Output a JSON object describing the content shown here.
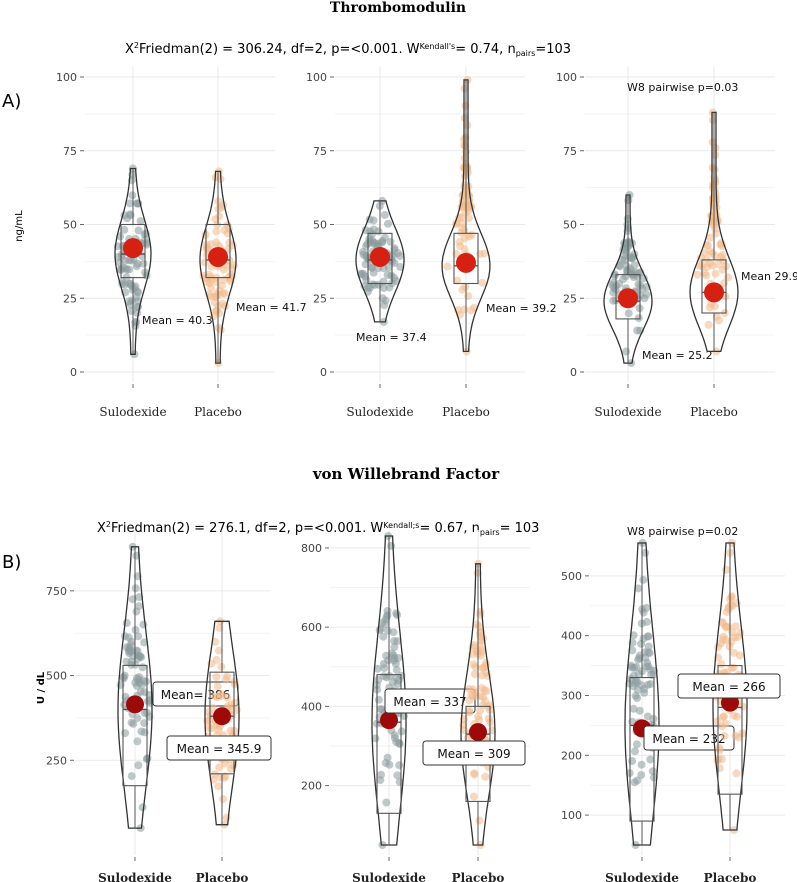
{
  "figure": {
    "panel_a": {
      "title": "Thrombomodulin",
      "letter": "A)",
      "stats_parts": [
        "X",
        "2",
        "Friedman(2) = 306.24, df=2, p=<0.001. W",
        "Kendall's",
        "= 0.74, n",
        "pairs",
        "=103"
      ],
      "y_label": "ng/mL"
    },
    "panel_b": {
      "title": "von Willebrand Factor",
      "letter": "B)",
      "stats_parts": [
        "X",
        "2",
        "Friedman(2) = 276.1, df=2, p=<0.001. W",
        "Kendall;s",
        "= 0.67, n",
        "pairs",
        "= 103"
      ],
      "y_label": "U / dL"
    }
  },
  "chart_data": [
    {
      "type": "violin",
      "panel": "A",
      "categories": [
        "Sulodexide",
        "Placebo"
      ],
      "ylim": [
        0,
        100
      ],
      "yticks": [
        0,
        25,
        50,
        75,
        100
      ],
      "annotation": "",
      "series": [
        {
          "category": "Sulodexide",
          "mean": 40.3,
          "mean_label": "Mean = 40.3",
          "median": 40,
          "q1": 32,
          "q3": 50,
          "min": 6,
          "max": 69,
          "mean_marker": 42
        },
        {
          "category": "Placebo",
          "mean": 41.7,
          "mean_label": "Mean = 41.7",
          "median": 38,
          "q1": 32,
          "q3": 50,
          "min": 3,
          "max": 68,
          "mean_marker": 39
        }
      ]
    },
    {
      "type": "violin",
      "panel": "A",
      "categories": [
        "Sulodexide",
        "Placebo"
      ],
      "ylim": [
        0,
        100
      ],
      "yticks": [
        0,
        25,
        50,
        75,
        100
      ],
      "annotation": "",
      "series": [
        {
          "category": "Sulodexide",
          "mean": 37.4,
          "mean_label": "Mean = 37.4",
          "median": 38,
          "q1": 30,
          "q3": 47,
          "min": 17,
          "max": 58,
          "mean_marker": 39
        },
        {
          "category": "Placebo",
          "mean": 39.2,
          "mean_label": "Mean = 39.2",
          "median": 36,
          "q1": 30,
          "q3": 47,
          "min": 7,
          "max": 99,
          "mean_marker": 37
        }
      ]
    },
    {
      "type": "violin",
      "panel": "A",
      "categories": [
        "Sulodexide",
        "Placebo"
      ],
      "ylim": [
        0,
        100
      ],
      "yticks": [
        0,
        25,
        50,
        75,
        100
      ],
      "annotation": "W8 pairwise p=0.03",
      "series": [
        {
          "category": "Sulodexide",
          "mean": 25.2,
          "mean_label": "Mean = 25.2",
          "median": 24,
          "q1": 18,
          "q3": 33,
          "min": 3,
          "max": 60,
          "mean_marker": 25
        },
        {
          "category": "Placebo",
          "mean": 29.9,
          "mean_label": "Mean 29.9",
          "median": 27,
          "q1": 20,
          "q3": 38,
          "min": 7,
          "max": 88,
          "mean_marker": 27
        }
      ]
    },
    {
      "type": "violin",
      "panel": "B",
      "categories": [
        "Sulodexide",
        "Placebo"
      ],
      "ylim": [
        0,
        900
      ],
      "yticks": [
        250,
        500,
        750
      ],
      "annotation": "",
      "series": [
        {
          "category": "Sulodexide",
          "mean": 386,
          "mean_label": "Mean= 386",
          "median": 400,
          "q1": 175,
          "q3": 530,
          "min": 50,
          "max": 880,
          "mean_marker": 415
        },
        {
          "category": "Placebo",
          "mean": 345.9,
          "mean_label": "Mean = 345.9",
          "median": 380,
          "q1": 210,
          "q3": 510,
          "min": 60,
          "max": 660,
          "mean_marker": 380
        }
      ]
    },
    {
      "type": "violin",
      "panel": "B",
      "categories": [
        "Sulodexide",
        "Placebo"
      ],
      "ylim": [
        50,
        820
      ],
      "yticks": [
        200,
        400,
        600,
        800
      ],
      "annotation": "",
      "series": [
        {
          "category": "Sulodexide",
          "mean": 337,
          "mean_label": "Mean = 337",
          "median": 360,
          "q1": 130,
          "q3": 480,
          "min": 50,
          "max": 830,
          "mean_marker": 365
        },
        {
          "category": "Placebo",
          "mean": 309,
          "mean_label": "Mean = 309",
          "median": 330,
          "q1": 160,
          "q3": 400,
          "min": 50,
          "max": 760,
          "mean_marker": 335
        }
      ]
    },
    {
      "type": "violin",
      "panel": "B",
      "categories": [
        "Sulodexide",
        "Placebo"
      ],
      "ylim": [
        50,
        560
      ],
      "yticks": [
        100,
        200,
        300,
        400,
        500
      ],
      "annotation": "W8 pairwise p=0.02",
      "series": [
        {
          "category": "Sulodexide",
          "mean": 232,
          "mean_label": "Mean = 232",
          "median": 250,
          "q1": 90,
          "q3": 330,
          "min": 50,
          "max": 555,
          "mean_marker": 245
        },
        {
          "category": "Placebo",
          "mean": 266,
          "mean_label": "Mean = 266",
          "median": 280,
          "q1": 135,
          "q3": 350,
          "min": 75,
          "max": 555,
          "mean_marker": 288
        }
      ]
    }
  ],
  "colors": {
    "sulodexide_points": "#8a9a9c",
    "placebo_points": "#f3b98a",
    "mean_marker_a": "#d62012",
    "mean_marker_b": "#9e0a0a",
    "grid": "#e9e9e9",
    "outline": "#333333"
  }
}
